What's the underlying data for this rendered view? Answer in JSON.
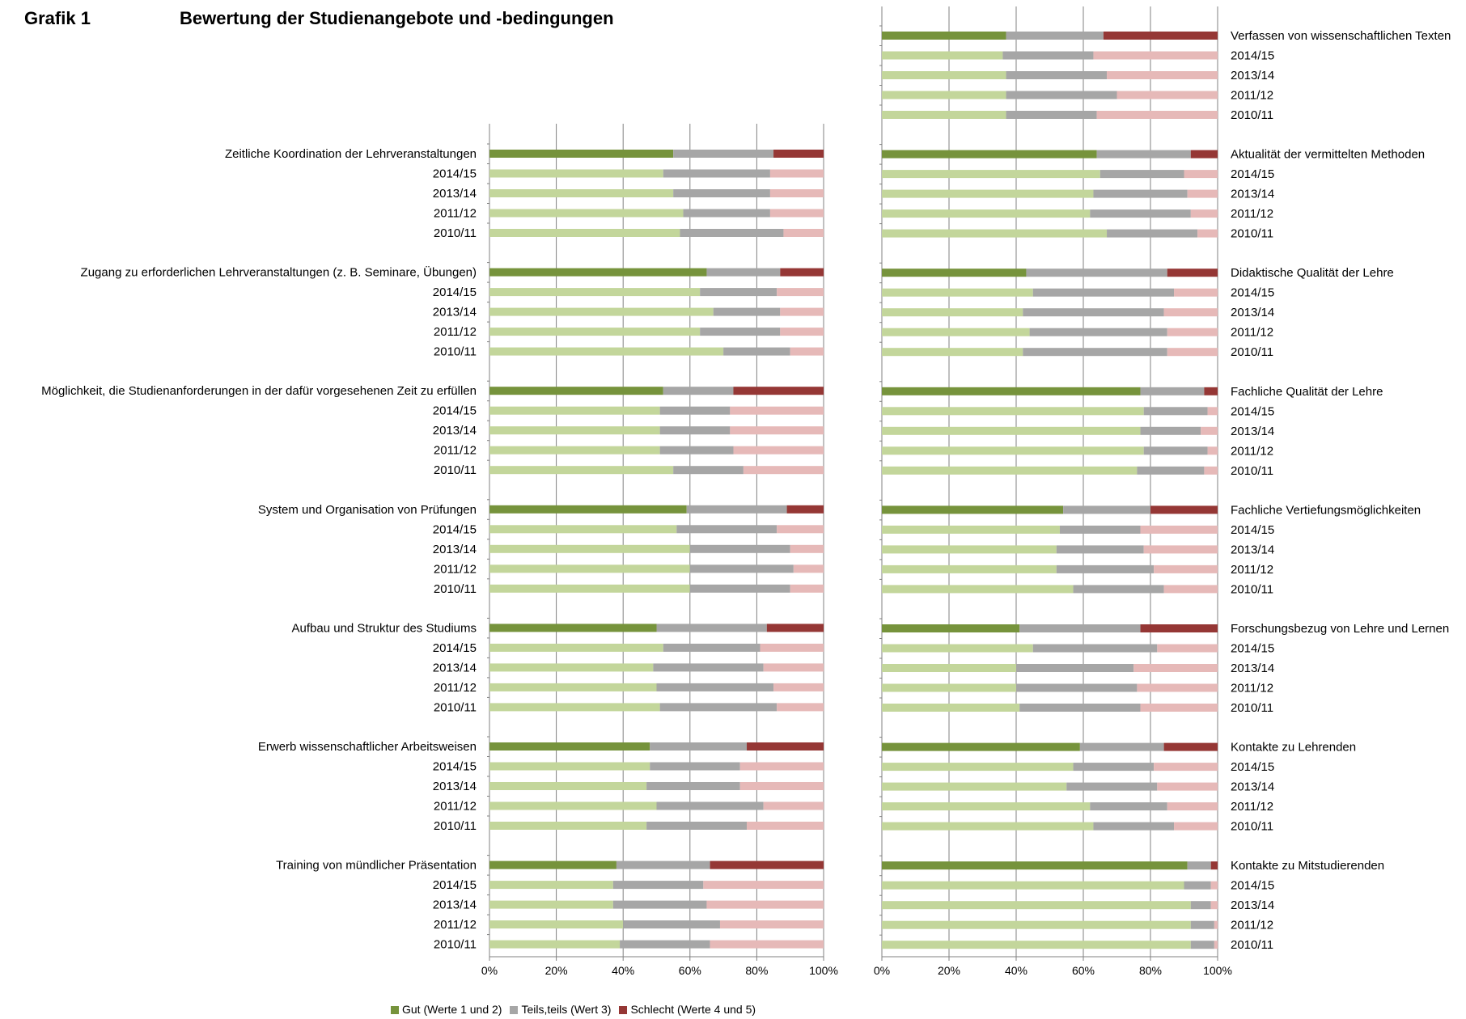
{
  "page": {
    "label": "Grafik 1",
    "heading": "Bewertung der Studienangebote und -bedingungen"
  },
  "colors": {
    "gut_dark": "#76933C",
    "gut_light": "#C3D69B",
    "teils_dark": "#A6A6A6",
    "teils_light": "#A6A6A6",
    "schlecht_dark": "#953735",
    "schlecht_light": "#E6B9B8",
    "gridline": "#808080"
  },
  "legend": [
    {
      "label": "Gut (Werte 1 und 2)",
      "color": "#76933C"
    },
    {
      "label": "Teils,teils (Wert 3)",
      "color": "#A6A6A6"
    },
    {
      "label": "Schlecht (Werte 4 und 5)",
      "color": "#953735"
    }
  ],
  "chart_data": [
    {
      "type": "bar",
      "orientation": "horizontal",
      "stacked": true,
      "panel": "left",
      "xlim": [
        0,
        100
      ],
      "xticks": [
        "0%",
        "20%",
        "40%",
        "60%",
        "80%",
        "100%"
      ],
      "series_names": [
        "Gut (Werte 1 und 2)",
        "Teils,teils (Wert 3)",
        "Schlecht (Werte 4 und 5)"
      ],
      "groups": [
        {
          "title": "Zeitliche Koordination der Lehrveranstaltungen",
          "rows": [
            {
              "label": "",
              "values": [
                55,
                30,
                15
              ]
            },
            {
              "label": "2014/15",
              "values": [
                52,
                32,
                16
              ]
            },
            {
              "label": "2013/14",
              "values": [
                55,
                29,
                16
              ]
            },
            {
              "label": "2011/12",
              "values": [
                58,
                26,
                16
              ]
            },
            {
              "label": "2010/11",
              "values": [
                57,
                31,
                12
              ]
            }
          ]
        },
        {
          "title": "Zugang zu erforderlichen Lehrveranstaltungen (z. B. Seminare, Übungen)",
          "rows": [
            {
              "label": "",
              "values": [
                65,
                22,
                13
              ]
            },
            {
              "label": "2014/15",
              "values": [
                63,
                23,
                14
              ]
            },
            {
              "label": "2013/14",
              "values": [
                67,
                20,
                13
              ]
            },
            {
              "label": "2011/12",
              "values": [
                63,
                24,
                13
              ]
            },
            {
              "label": "2010/11",
              "values": [
                70,
                20,
                10
              ]
            }
          ]
        },
        {
          "title": "Möglichkeit, die Studienanforderungen in der dafür vorgesehenen Zeit zu erfüllen",
          "rows": [
            {
              "label": "",
              "values": [
                52,
                21,
                27
              ]
            },
            {
              "label": "2014/15",
              "values": [
                51,
                21,
                28
              ]
            },
            {
              "label": "2013/14",
              "values": [
                51,
                21,
                28
              ]
            },
            {
              "label": "2011/12",
              "values": [
                51,
                22,
                27
              ]
            },
            {
              "label": "2010/11",
              "values": [
                55,
                21,
                24
              ]
            }
          ]
        },
        {
          "title": "System und Organisation von Prüfungen",
          "rows": [
            {
              "label": "",
              "values": [
                59,
                30,
                11
              ]
            },
            {
              "label": "2014/15",
              "values": [
                56,
                30,
                14
              ]
            },
            {
              "label": "2013/14",
              "values": [
                60,
                30,
                10
              ]
            },
            {
              "label": "2011/12",
              "values": [
                60,
                31,
                9
              ]
            },
            {
              "label": "2010/11",
              "values": [
                60,
                30,
                10
              ]
            }
          ]
        },
        {
          "title": "Aufbau und Struktur des Studiums",
          "rows": [
            {
              "label": "",
              "values": [
                50,
                33,
                17
              ]
            },
            {
              "label": "2014/15",
              "values": [
                52,
                29,
                19
              ]
            },
            {
              "label": "2013/14",
              "values": [
                49,
                33,
                18
              ]
            },
            {
              "label": "2011/12",
              "values": [
                50,
                35,
                15
              ]
            },
            {
              "label": "2010/11",
              "values": [
                51,
                35,
                14
              ]
            }
          ]
        },
        {
          "title": "Erwerb wissenschaftlicher Arbeitsweisen",
          "rows": [
            {
              "label": "",
              "values": [
                48,
                29,
                23
              ]
            },
            {
              "label": "2014/15",
              "values": [
                48,
                27,
                25
              ]
            },
            {
              "label": "2013/14",
              "values": [
                47,
                28,
                25
              ]
            },
            {
              "label": "2011/12",
              "values": [
                50,
                32,
                18
              ]
            },
            {
              "label": "2010/11",
              "values": [
                47,
                30,
                23
              ]
            }
          ]
        },
        {
          "title": "Training von mündlicher Präsentation",
          "rows": [
            {
              "label": "",
              "values": [
                38,
                28,
                34
              ]
            },
            {
              "label": "2014/15",
              "values": [
                37,
                27,
                36
              ]
            },
            {
              "label": "2013/14",
              "values": [
                37,
                28,
                35
              ]
            },
            {
              "label": "2011/12",
              "values": [
                40,
                29,
                31
              ]
            },
            {
              "label": "2010/11",
              "values": [
                39,
                27,
                34
              ]
            }
          ]
        }
      ]
    },
    {
      "type": "bar",
      "orientation": "horizontal",
      "stacked": true,
      "panel": "right",
      "xlim": [
        0,
        100
      ],
      "xticks": [
        "0%",
        "20%",
        "40%",
        "60%",
        "80%",
        "100%"
      ],
      "series_names": [
        "Gut (Werte 1 und 2)",
        "Teils,teils (Wert 3)",
        "Schlecht (Werte 4 und 5)"
      ],
      "groups": [
        {
          "title": "Verfassen von wissenschaftlichen Texten",
          "rows": [
            {
              "label": "",
              "values": [
                37,
                29,
                34
              ]
            },
            {
              "label": "2014/15",
              "values": [
                36,
                27,
                37
              ]
            },
            {
              "label": "2013/14",
              "values": [
                37,
                30,
                33
              ]
            },
            {
              "label": "2011/12",
              "values": [
                37,
                33,
                30
              ]
            },
            {
              "label": "2010/11",
              "values": [
                37,
                27,
                36
              ]
            }
          ]
        },
        {
          "title": "Aktualität der vermittelten Methoden",
          "rows": [
            {
              "label": "",
              "values": [
                64,
                28,
                8
              ]
            },
            {
              "label": "2014/15",
              "values": [
                65,
                25,
                10
              ]
            },
            {
              "label": "2013/14",
              "values": [
                63,
                28,
                9
              ]
            },
            {
              "label": "2011/12",
              "values": [
                62,
                30,
                8
              ]
            },
            {
              "label": "2010/11",
              "values": [
                67,
                27,
                6
              ]
            }
          ]
        },
        {
          "title": "Didaktische Qualität der Lehre",
          "rows": [
            {
              "label": "",
              "values": [
                43,
                42,
                15
              ]
            },
            {
              "label": "2014/15",
              "values": [
                45,
                42,
                13
              ]
            },
            {
              "label": "2013/14",
              "values": [
                42,
                42,
                16
              ]
            },
            {
              "label": "2011/12",
              "values": [
                44,
                41,
                15
              ]
            },
            {
              "label": "2010/11",
              "values": [
                42,
                43,
                15
              ]
            }
          ]
        },
        {
          "title": "Fachliche Qualität der Lehre",
          "rows": [
            {
              "label": "",
              "values": [
                77,
                19,
                4
              ]
            },
            {
              "label": "2014/15",
              "values": [
                78,
                19,
                3
              ]
            },
            {
              "label": "2013/14",
              "values": [
                77,
                18,
                5
              ]
            },
            {
              "label": "2011/12",
              "values": [
                78,
                19,
                3
              ]
            },
            {
              "label": "2010/11",
              "values": [
                76,
                20,
                4
              ]
            }
          ]
        },
        {
          "title": "Fachliche Vertiefungsmöglichkeiten",
          "rows": [
            {
              "label": "",
              "values": [
                54,
                26,
                20
              ]
            },
            {
              "label": "2014/15",
              "values": [
                53,
                24,
                23
              ]
            },
            {
              "label": "2013/14",
              "values": [
                52,
                26,
                22
              ]
            },
            {
              "label": "2011/12",
              "values": [
                52,
                29,
                19
              ]
            },
            {
              "label": "2010/11",
              "values": [
                57,
                27,
                16
              ]
            }
          ]
        },
        {
          "title": "Forschungsbezug von Lehre und Lernen",
          "rows": [
            {
              "label": "",
              "values": [
                41,
                36,
                23
              ]
            },
            {
              "label": "2014/15",
              "values": [
                45,
                37,
                18
              ]
            },
            {
              "label": "2013/14",
              "values": [
                40,
                35,
                25
              ]
            },
            {
              "label": "2011/12",
              "values": [
                40,
                36,
                24
              ]
            },
            {
              "label": "2010/11",
              "values": [
                41,
                36,
                23
              ]
            }
          ]
        },
        {
          "title": "Kontakte zu Lehrenden",
          "rows": [
            {
              "label": "",
              "values": [
                59,
                25,
                16
              ]
            },
            {
              "label": "2014/15",
              "values": [
                57,
                24,
                19
              ]
            },
            {
              "label": "2013/14",
              "values": [
                55,
                27,
                18
              ]
            },
            {
              "label": "2011/12",
              "values": [
                62,
                23,
                15
              ]
            },
            {
              "label": "2010/11",
              "values": [
                63,
                24,
                13
              ]
            }
          ]
        },
        {
          "title": "Kontakte zu Mitstudierenden",
          "rows": [
            {
              "label": "",
              "values": [
                91,
                7,
                2
              ]
            },
            {
              "label": "2014/15",
              "values": [
                90,
                8,
                2
              ]
            },
            {
              "label": "2013/14",
              "values": [
                92,
                6,
                2
              ]
            },
            {
              "label": "2011/12",
              "values": [
                92,
                7,
                1
              ]
            },
            {
              "label": "2010/11",
              "values": [
                92,
                7,
                1
              ]
            }
          ]
        }
      ]
    }
  ]
}
